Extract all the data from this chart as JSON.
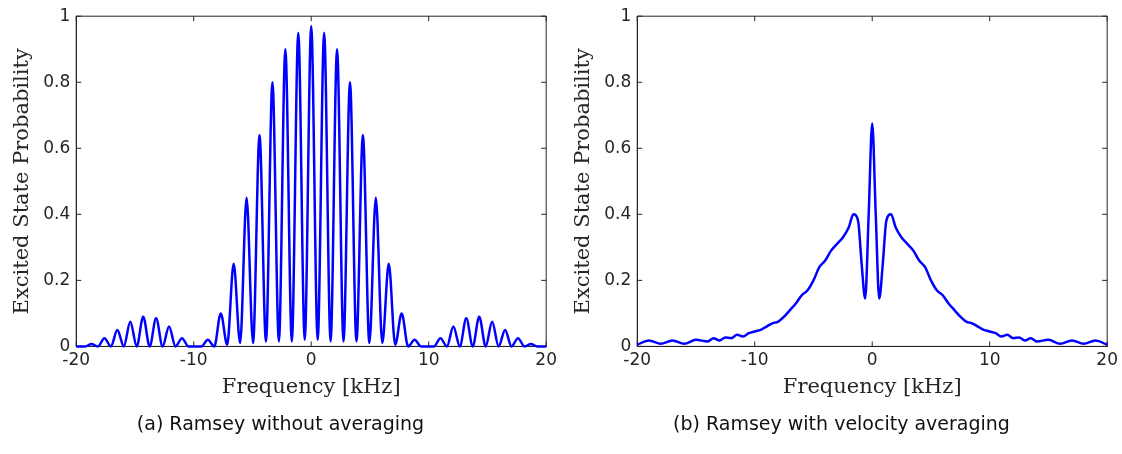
{
  "chart_data": [
    {
      "type": "line",
      "title": "(a) Ramsey without averaging",
      "xlabel": "Frequency [kHz]",
      "ylabel": "Excited State Probability",
      "color": "#0000ff",
      "line_style": "solid",
      "xlim": [
        -20,
        20
      ],
      "ylim": [
        0,
        1
      ],
      "xticks": [
        -20,
        -10,
        0,
        10,
        20
      ],
      "yticks": [
        0,
        0.2,
        0.4,
        0.6,
        0.8,
        1
      ],
      "x": [
        -20,
        -19.8,
        -19.25,
        -18.7,
        -18.15,
        -17.6,
        -17.05,
        -16.5,
        -15.95,
        -15.4,
        -14.85,
        -14.3,
        -13.75,
        -13.2,
        -12.65,
        -12.1,
        -11.55,
        -11,
        -10.45,
        -9.9,
        -9.35,
        -8.8,
        -8.25,
        -7.7,
        -7.15,
        -6.6,
        -6.05,
        -5.5,
        -4.95,
        -4.4,
        -3.85,
        -3.3,
        -2.75,
        -2.2,
        -1.65,
        -1.1,
        -0.55,
        0,
        0.55,
        1.1,
        1.65,
        2.2,
        2.75,
        3.3,
        3.85,
        4.4,
        4.95,
        5.5,
        6.05,
        6.6,
        7.15,
        7.7,
        8.25,
        8.8,
        9.35,
        9.9,
        10.45,
        11,
        11.55,
        12.1,
        12.65,
        13.2,
        13.75,
        14.3,
        14.85,
        15.4,
        15.95,
        16.5,
        17.05,
        17.6,
        18.15,
        18.7,
        19.25,
        19.8,
        20
      ],
      "values": [
        0,
        0,
        0,
        0.007,
        0,
        0.025,
        0,
        0.05,
        0,
        0.075,
        0,
        0.09,
        0,
        0.085,
        0,
        0.06,
        0,
        0.025,
        0,
        0,
        0,
        0.02,
        0,
        0.1,
        0.005,
        0.25,
        0.01,
        0.45,
        0.01,
        0.64,
        0.015,
        0.8,
        0.015,
        0.9,
        0.015,
        0.95,
        0.02,
        0.97,
        0.02,
        0.95,
        0.015,
        0.9,
        0.015,
        0.8,
        0.015,
        0.64,
        0.01,
        0.45,
        0.01,
        0.25,
        0.005,
        0.1,
        0,
        0.02,
        0,
        0,
        0,
        0.025,
        0,
        0.06,
        0,
        0.085,
        0,
        0.09,
        0,
        0.075,
        0,
        0.05,
        0,
        0.025,
        0,
        0.007,
        0,
        0,
        0
      ]
    },
    {
      "type": "line",
      "title": "(b) Ramsey with velocity averaging",
      "xlabel": "Frequency [kHz]",
      "ylabel": "Excited State Probability",
      "color": "#0000ff",
      "line_style": "solid",
      "xlim": [
        -20,
        20
      ],
      "ylim": [
        0,
        1
      ],
      "xticks": [
        -20,
        -10,
        0,
        10,
        20
      ],
      "yticks": [
        0,
        0.2,
        0.4,
        0.6,
        0.8,
        1
      ],
      "x": [
        -20,
        -19,
        -18,
        -17,
        -16,
        -15,
        -14,
        -13.5,
        -13,
        -12.5,
        -12,
        -11.5,
        -11,
        -10.5,
        -10,
        -9.5,
        -9,
        -8.5,
        -8,
        -7.5,
        -7,
        -6.5,
        -6,
        -5.5,
        -5,
        -4.5,
        -4,
        -3.5,
        -3,
        -2.5,
        -2,
        -1.6,
        -1.2,
        -0.9,
        -0.6,
        -0.3,
        0,
        0.3,
        0.6,
        0.9,
        1.2,
        1.6,
        2,
        2.5,
        3,
        3.5,
        4,
        4.5,
        5,
        5.5,
        6,
        6.5,
        7,
        7.5,
        8,
        8.5,
        9,
        9.5,
        10,
        10.5,
        11,
        11.5,
        12,
        12.5,
        13,
        13.5,
        14,
        15,
        16,
        17,
        18,
        19,
        20
      ],
      "values": [
        0.005,
        0.018,
        0.008,
        0.018,
        0.008,
        0.02,
        0.015,
        0.025,
        0.018,
        0.027,
        0.025,
        0.035,
        0.03,
        0.04,
        0.045,
        0.05,
        0.06,
        0.07,
        0.075,
        0.09,
        0.11,
        0.13,
        0.155,
        0.17,
        0.2,
        0.24,
        0.26,
        0.29,
        0.31,
        0.33,
        0.36,
        0.4,
        0.38,
        0.25,
        0.145,
        0.4,
        0.675,
        0.4,
        0.145,
        0.25,
        0.38,
        0.4,
        0.36,
        0.33,
        0.31,
        0.29,
        0.26,
        0.24,
        0.2,
        0.17,
        0.155,
        0.13,
        0.11,
        0.09,
        0.075,
        0.07,
        0.06,
        0.05,
        0.045,
        0.04,
        0.03,
        0.035,
        0.025,
        0.027,
        0.018,
        0.025,
        0.015,
        0.02,
        0.008,
        0.018,
        0.008,
        0.018,
        0.005
      ]
    }
  ]
}
